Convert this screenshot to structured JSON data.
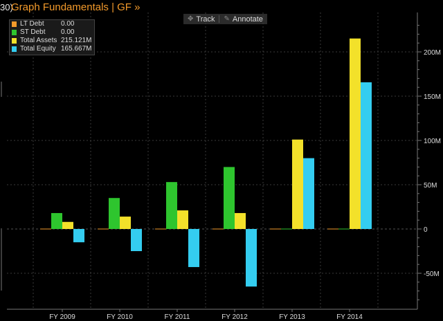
{
  "header": {
    "number": "30)",
    "title": "Graph Fundamentals | GF »"
  },
  "toolbar": {
    "track_label": "Track",
    "annotate_label": "Annotate"
  },
  "chart_data": {
    "type": "bar",
    "categories": [
      "FY 2009",
      "FY 2010",
      "FY 2011",
      "FY 2012",
      "FY 2013",
      "FY 2014"
    ],
    "series": [
      {
        "name": "LT Debt",
        "color": "#f39a2b",
        "values": [
          0,
          0,
          0,
          0,
          0,
          0
        ],
        "legend_value": "0.00"
      },
      {
        "name": "ST Debt",
        "color": "#2ec52e",
        "values": [
          18,
          35,
          53,
          70,
          0,
          0
        ],
        "legend_value": "0.00"
      },
      {
        "name": "Total Assets",
        "color": "#f3e12a",
        "values": [
          8,
          14,
          21,
          18,
          101,
          215.121
        ],
        "legend_value": "215.121M"
      },
      {
        "name": "Total Equity",
        "color": "#34cdf0",
        "values": [
          -15,
          -25,
          -43,
          -65,
          80,
          165.667
        ],
        "legend_value": "165.667M"
      }
    ],
    "yticks": [
      -50,
      0,
      50,
      100,
      150,
      200
    ],
    "ytick_labels": [
      "-50M",
      "0",
      "50M",
      "100M",
      "150M",
      "200M"
    ],
    "ylim": [
      -85,
      238
    ],
    "grid": true,
    "legend_position": "top-left"
  }
}
